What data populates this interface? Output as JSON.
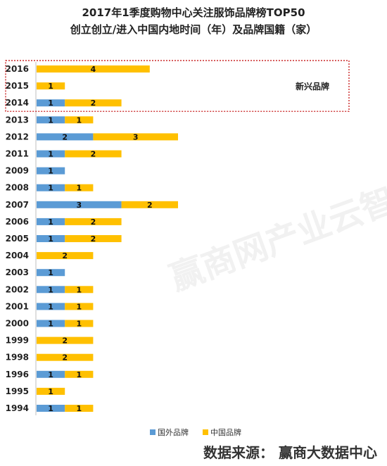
{
  "title_line1": "2017年1季度购物中心关注服饰品牌榜TOP50",
  "title_line2": "创立创立/进入中国内地时间（年）及品牌国籍（家）",
  "annotation": "新兴品牌",
  "watermark": "赢商网产业云智库",
  "source": "数据来源：  赢商大数据中心",
  "colors": {
    "foreign": "#5B9BD5",
    "chinese": "#FFC000",
    "box": "#C00000"
  },
  "chart_data": {
    "type": "bar",
    "orientation": "horizontal",
    "stacked": true,
    "categories": [
      "2016",
      "2015",
      "2014",
      "2013",
      "2012",
      "2011",
      "2009",
      "2008",
      "2007",
      "2006",
      "2005",
      "2004",
      "2003",
      "2002",
      "2001",
      "2000",
      "1999",
      "1998",
      "1996",
      "1995",
      "1994"
    ],
    "series": [
      {
        "name": "国外品牌",
        "values": [
          0,
          0,
          1,
          1,
          2,
          1,
          1,
          1,
          3,
          1,
          1,
          0,
          1,
          1,
          1,
          1,
          0,
          0,
          1,
          0,
          1
        ]
      },
      {
        "name": "中国品牌",
        "values": [
          4,
          1,
          2,
          1,
          3,
          2,
          0,
          1,
          2,
          2,
          2,
          2,
          0,
          1,
          1,
          1,
          2,
          2,
          1,
          1,
          1
        ]
      }
    ],
    "legend_position": "bottom",
    "highlight": {
      "label": "新兴品牌",
      "categories": [
        "2016",
        "2015",
        "2014"
      ]
    }
  }
}
